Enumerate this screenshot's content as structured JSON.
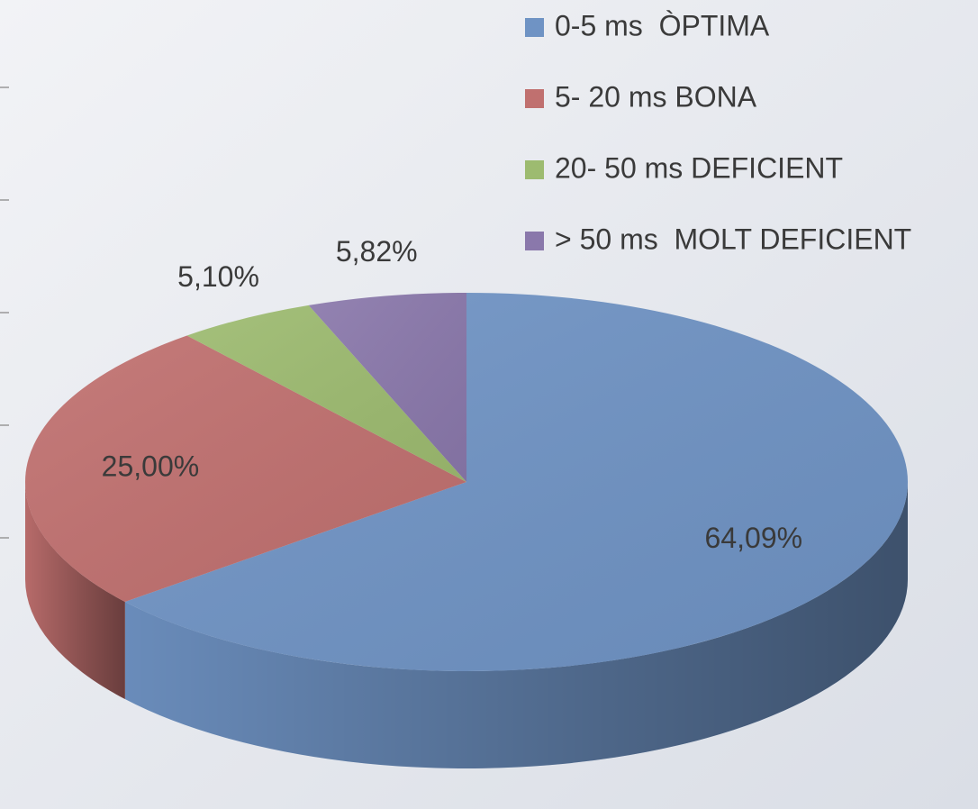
{
  "chart_data": {
    "type": "pie",
    "categories": [
      "0-5 ms  ÒPTIMA",
      "5- 20 ms BONA",
      "20- 50 ms DEFICIENT",
      "> 50 ms  MOLT DEFICIENT"
    ],
    "values": [
      64.09,
      25.0,
      5.1,
      5.82
    ],
    "value_labels": [
      "64,09%",
      "25,00%",
      "5,10%",
      "5,82%"
    ],
    "colors": [
      "#6f93c4",
      "#c0706f",
      "#9dbb70",
      "#8a78ab"
    ],
    "legend": "top-right"
  }
}
